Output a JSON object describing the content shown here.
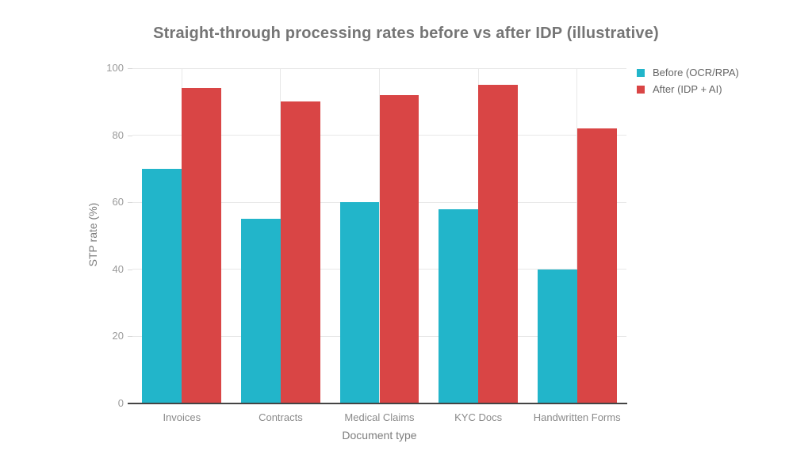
{
  "chart_data": {
    "type": "bar",
    "title": "Straight-through processing rates before vs after IDP (illustrative)",
    "xlabel": "Document type",
    "ylabel": "STP rate (%)",
    "categories": [
      "Invoices",
      "Contracts",
      "Medical Claims",
      "KYC Docs",
      "Handwritten Forms"
    ],
    "series": [
      {
        "key": "before",
        "name": "Before (OCR/RPA)",
        "color": "#22b5ca",
        "values": [
          70,
          55,
          60,
          58,
          40
        ]
      },
      {
        "key": "after",
        "name": "After (IDP + AI)",
        "color": "#d94545",
        "values": [
          94,
          90,
          92,
          95,
          82
        ]
      }
    ],
    "ylim": [
      0,
      100
    ],
    "yticks": [
      0,
      20,
      40,
      60,
      80,
      100
    ],
    "grid": true,
    "legend_position": "top-right",
    "colors": {
      "grid": "#e8e8e8",
      "tick_mark": "#d9d9d9",
      "axis_line": "#444444"
    }
  }
}
